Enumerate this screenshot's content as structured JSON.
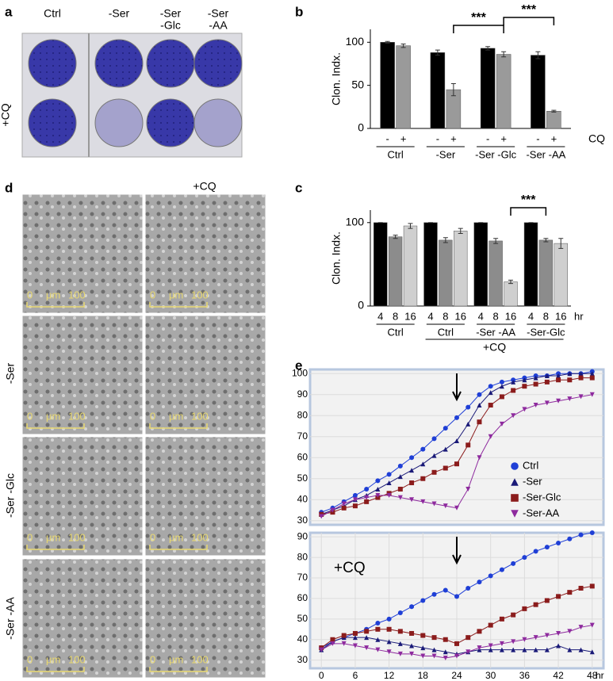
{
  "figure": {
    "panel_letters": [
      "a",
      "b",
      "c",
      "d",
      "e"
    ],
    "plate": {
      "columns": [
        [
          "Ctrl"
        ],
        [
          "-Ser"
        ],
        [
          "-Ser",
          "-Glc"
        ],
        [
          "-Ser",
          "-AA"
        ]
      ],
      "row_label": "+CQ"
    },
    "micrographs": {
      "column_label": "+CQ",
      "row_labels": [
        "-Ser",
        "-Ser -Glc",
        "-Ser -AA"
      ],
      "scale": [
        "0",
        "μm",
        "100"
      ]
    }
  },
  "chart_data": [
    {
      "type": "bar",
      "ylabel": "Clon. Indx.",
      "categories": [
        "Ctrl",
        "-Ser",
        "-Ser -Glc",
        "-Ser -AA"
      ],
      "series": [
        {
          "name": "-",
          "color": "#000000",
          "values": [
            100,
            88,
            93,
            85
          ],
          "errors": [
            1,
            3,
            2,
            4
          ]
        },
        {
          "name": "+",
          "color": "#9a9a9a",
          "values": [
            96,
            45,
            86,
            20
          ],
          "errors": [
            2,
            7,
            3,
            1
          ]
        }
      ],
      "legend_title": "CQ",
      "annotations": [
        "***",
        "***"
      ],
      "ylim": [
        0,
        115
      ],
      "yticks": [
        0,
        50,
        100
      ]
    },
    {
      "type": "bar",
      "ylabel": "Clon. Indx.",
      "categories": [
        "Ctrl",
        "Ctrl",
        "-Ser -AA",
        "-Ser-Glc"
      ],
      "series": [
        {
          "name": "4",
          "color": "#000000",
          "values": [
            100,
            100,
            100,
            100
          ],
          "errors": [
            0,
            0,
            0,
            0
          ]
        },
        {
          "name": "8",
          "color": "#8c8c8c",
          "values": [
            83,
            79,
            78,
            79
          ],
          "errors": [
            2,
            3,
            3,
            2
          ]
        },
        {
          "name": "16",
          "color": "#cfcfcf",
          "values": [
            96,
            90,
            29,
            75
          ],
          "errors": [
            3,
            3,
            2,
            6
          ]
        }
      ],
      "unit": "hr",
      "group_label": "+CQ",
      "annotations": [
        "***"
      ],
      "ylim": [
        0,
        115
      ],
      "yticks": [
        0,
        100
      ]
    },
    {
      "type": "line",
      "x": [
        0,
        2,
        4,
        6,
        8,
        10,
        12,
        14,
        16,
        18,
        20,
        22,
        24,
        26,
        28,
        30,
        32,
        34,
        36,
        38,
        40,
        42,
        44,
        46,
        48
      ],
      "series": [
        {
          "name": "Ctrl",
          "color": "#1f3fd6",
          "marker": "circle",
          "values": [
            34,
            36,
            39,
            42,
            45,
            49,
            52,
            56,
            60,
            64,
            69,
            74,
            79,
            84,
            90,
            94,
            96,
            97,
            98,
            99,
            99,
            100,
            100,
            100,
            101
          ]
        },
        {
          "name": "-Ser",
          "color": "#1a1a78",
          "marker": "triangle",
          "values": [
            33,
            35,
            37,
            40,
            42,
            45,
            48,
            51,
            54,
            57,
            61,
            64,
            68,
            76,
            85,
            91,
            94,
            96,
            97,
            98,
            99,
            99,
            100,
            100,
            100
          ]
        },
        {
          "name": "-Ser-Glc",
          "color": "#8b1c1c",
          "marker": "square",
          "values": [
            33,
            34,
            36,
            37,
            39,
            41,
            43,
            45,
            48,
            50,
            53,
            55,
            57,
            66,
            77,
            85,
            89,
            92,
            94,
            95,
            96,
            97,
            97,
            98,
            98
          ]
        },
        {
          "name": "-Ser-AA",
          "color": "#8e2a9e",
          "marker": "triangle-down",
          "values": [
            32,
            35,
            38,
            40,
            41,
            42,
            42,
            41,
            40,
            39,
            38,
            37,
            36,
            45,
            60,
            70,
            76,
            80,
            83,
            85,
            86,
            87,
            88,
            89,
            90
          ]
        }
      ],
      "legend": "right",
      "grid": true,
      "xlim": [
        -2,
        50
      ],
      "ylim": [
        28,
        102
      ],
      "yticks": [
        30,
        40,
        50,
        60,
        70,
        80,
        90,
        100
      ]
    },
    {
      "type": "line",
      "x": [
        0,
        2,
        4,
        6,
        8,
        10,
        12,
        14,
        16,
        18,
        20,
        22,
        24,
        26,
        28,
        30,
        32,
        34,
        36,
        38,
        40,
        42,
        44,
        46,
        48
      ],
      "series": [
        {
          "color": "#1f3fd6",
          "marker": "circle",
          "values": [
            36,
            39,
            41,
            43,
            45,
            48,
            50,
            53,
            56,
            59,
            62,
            64,
            61,
            65,
            68,
            71,
            74,
            77,
            80,
            83,
            85,
            87,
            89,
            91,
            92
          ]
        },
        {
          "color": "#1a1a78",
          "marker": "triangle",
          "values": [
            35,
            39,
            41,
            41,
            41,
            40,
            39,
            38,
            37,
            36,
            35,
            34,
            33,
            34,
            35,
            35,
            35,
            35,
            35,
            35,
            35,
            37,
            35,
            35,
            34
          ]
        },
        {
          "color": "#8b1c1c",
          "marker": "square",
          "values": [
            36,
            40,
            42,
            43,
            44,
            45,
            45,
            44,
            43,
            42,
            41,
            40,
            38,
            41,
            44,
            47,
            50,
            52,
            55,
            57,
            59,
            61,
            63,
            65,
            66
          ]
        },
        {
          "color": "#8e2a9e",
          "marker": "triangle-down",
          "values": [
            35,
            38,
            38,
            37,
            36,
            35,
            34,
            33,
            33,
            32,
            32,
            31,
            32,
            34,
            36,
            37,
            38,
            39,
            40,
            41,
            42,
            43,
            44,
            46,
            47
          ]
        }
      ],
      "annotation": "+CQ",
      "grid": true,
      "xlabel": "hr",
      "xlim": [
        -2,
        50
      ],
      "ylim": [
        26,
        92
      ],
      "xticks": [
        0,
        6,
        12,
        18,
        24,
        30,
        36,
        42,
        48
      ],
      "yticks": [
        30,
        40,
        50,
        60,
        70,
        80,
        90
      ]
    }
  ]
}
